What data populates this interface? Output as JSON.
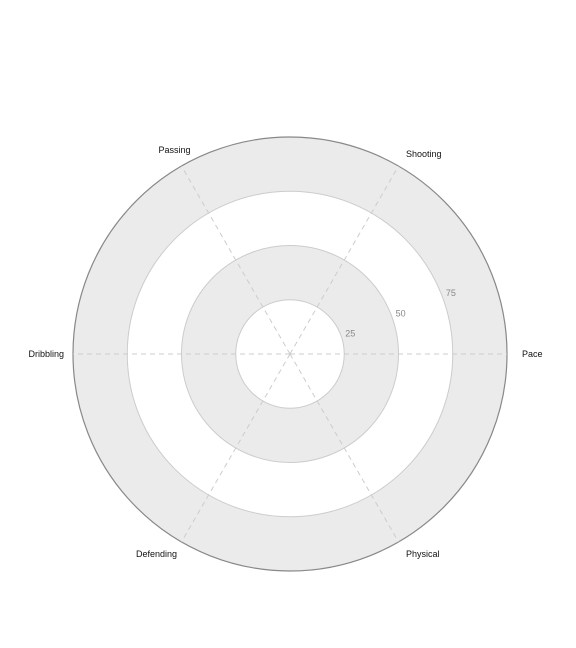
{
  "chart_data": {
    "type": "radar",
    "axes": [
      "Pace",
      "Shooting",
      "Passing",
      "Dribbling",
      "Defending",
      "Physical"
    ],
    "rlim": [
      0,
      100
    ],
    "radial_ticks": [
      25,
      50,
      75
    ],
    "radial_tick_labels": [
      "25",
      "50",
      "75"
    ],
    "rings": [
      25,
      50,
      75,
      100
    ],
    "series": [],
    "grid": true,
    "colors": {
      "band_fill": "#ebebeb",
      "ring_stroke": "#cccccc",
      "outer_stroke": "#888888",
      "spoke_stroke": "#cccccc",
      "tick_text": "#888888",
      "label_text": "#111111"
    }
  }
}
